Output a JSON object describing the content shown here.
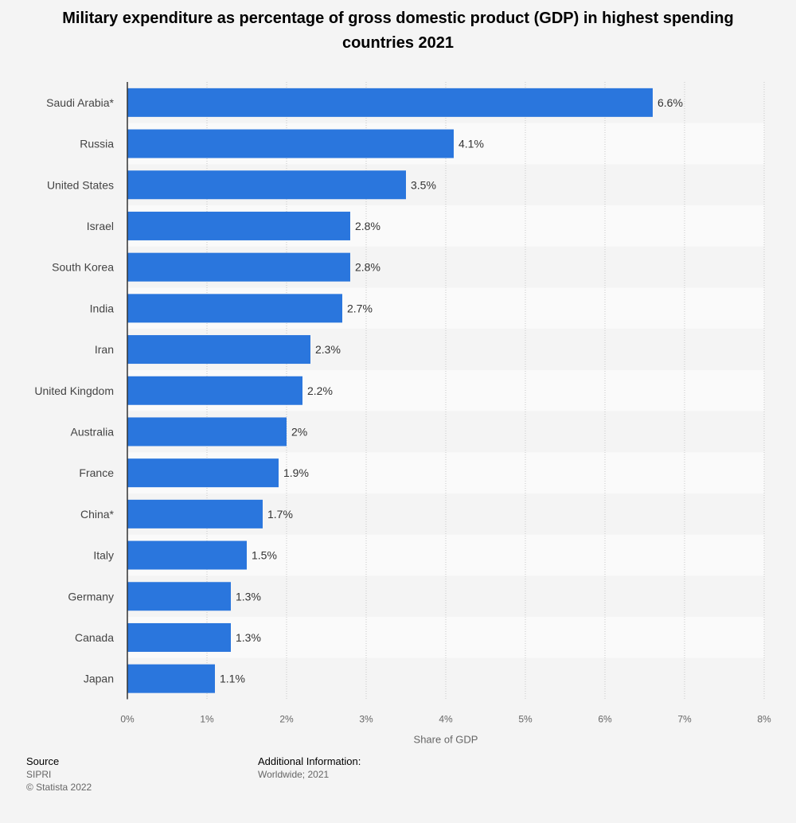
{
  "title": "Military expenditure as percentage of gross domestic product (GDP) in highest spending countries 2021",
  "footer": {
    "source_heading": "Source",
    "source_name": "SIPRI",
    "copyright": "© Statista 2022",
    "info_heading": "Additional Information:",
    "info_text": "Worldwide; 2021"
  },
  "colors": {
    "bar": "#2a76dd",
    "background": "#f4f4f4",
    "band": "#fafafa"
  },
  "chart_data": {
    "type": "bar",
    "orientation": "horizontal",
    "title": "Military expenditure as percentage of gross domestic product (GDP) in highest spending countries 2021",
    "xlabel": "Share of GDP",
    "ylabel": "",
    "xlim": [
      0,
      8
    ],
    "grid": true,
    "tick_labels": [
      "0%",
      "1%",
      "2%",
      "3%",
      "4%",
      "5%",
      "6%",
      "7%",
      "8%"
    ],
    "categories": [
      "Saudi Arabia*",
      "Russia",
      "United States",
      "Israel",
      "South Korea",
      "India",
      "Iran",
      "United Kingdom",
      "Australia",
      "France",
      "China*",
      "Italy",
      "Germany",
      "Canada",
      "Japan"
    ],
    "values": [
      6.6,
      4.1,
      3.5,
      2.8,
      2.8,
      2.7,
      2.3,
      2.2,
      2,
      1.9,
      1.7,
      1.5,
      1.3,
      1.3,
      1.1
    ],
    "data_labels": [
      "6.6%",
      "4.1%",
      "3.5%",
      "2.8%",
      "2.8%",
      "2.7%",
      "2.3%",
      "2.2%",
      "2%",
      "1.9%",
      "1.7%",
      "1.5%",
      "1.3%",
      "1.3%",
      "1.1%"
    ]
  }
}
